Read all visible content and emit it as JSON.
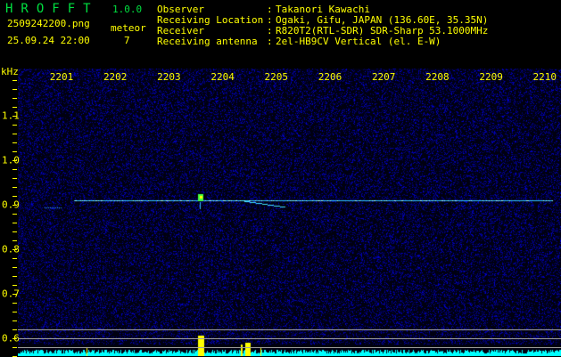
{
  "header": {
    "app_title": "HROFFT",
    "version": "1.0.0",
    "filename": "2509242200.png",
    "datetime": "25.09.24 22:00",
    "count_label": "meteor",
    "count_value": "7",
    "info": [
      {
        "label": "Observer",
        "value": "Takanori Kawachi"
      },
      {
        "label": "Receiving Location",
        "value": "Ogaki, Gifu, JAPAN (136.60E, 35.35N)"
      },
      {
        "label": "Receiver",
        "value": "R820T2(RTL-SDR) SDR-Sharp 53.1000MHz"
      },
      {
        "label": "Receiving antenna",
        "value": "2el-HB9CV Vertical (el. E-W)"
      }
    ]
  },
  "spectrogram": {
    "y_unit": "kHz",
    "x_ticks": [
      "2201",
      "2202",
      "2203",
      "2204",
      "2205",
      "2206",
      "2207",
      "2208",
      "2209",
      "2210"
    ],
    "y_ticks": [
      "1.1",
      "1.0",
      "0.9",
      "0.8",
      "0.7",
      "0.6"
    ],
    "colors": {
      "background": "#000000",
      "noise": "#1020c0",
      "signal": "#40e0ff",
      "meteor": "#ffff00",
      "level": "#00ffff"
    }
  }
}
